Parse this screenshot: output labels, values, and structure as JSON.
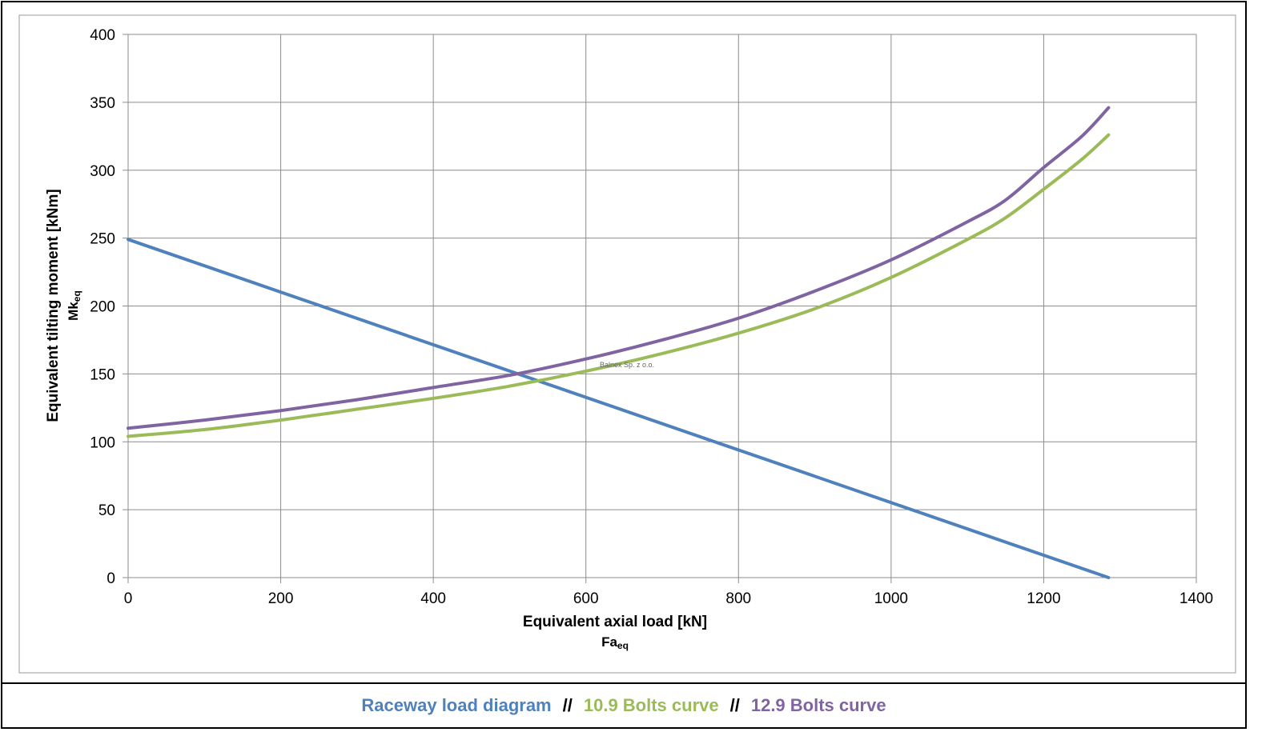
{
  "chart_data": {
    "type": "line",
    "title": "",
    "xlabel": "Equivalent axial load [kN]",
    "xlabel_symbol": "Fa",
    "xlabel_subscript": "eq",
    "ylabel": "Equivalent tilting moment [kNm]",
    "ylabel_symbol": "Mk",
    "ylabel_subscript": "eq",
    "xlim": [
      0,
      1400
    ],
    "ylim": [
      0,
      400
    ],
    "x_ticks": [
      0,
      200,
      400,
      600,
      800,
      1000,
      1200,
      1400
    ],
    "y_ticks": [
      0,
      50,
      100,
      150,
      200,
      250,
      300,
      350,
      400
    ],
    "grid": true,
    "watermark": "Balnex Sp. z o.o.",
    "series": [
      {
        "name": "Raceway load diagram",
        "color": "#4f81bd",
        "x": [
          0,
          1285
        ],
        "y": [
          249,
          0
        ]
      },
      {
        "name": "10.9 Bolts curve",
        "color": "#9bbb59",
        "x": [
          0,
          100,
          200,
          300,
          400,
          500,
          600,
          700,
          800,
          900,
          1000,
          1100,
          1150,
          1200,
          1250,
          1285
        ],
        "y": [
          104,
          109,
          116,
          124,
          132,
          141,
          152,
          165,
          180,
          198,
          221,
          249,
          265,
          286,
          308,
          326
        ]
      },
      {
        "name": "12.9 Bolts curve",
        "color": "#8064a2",
        "x": [
          0,
          100,
          200,
          300,
          400,
          500,
          600,
          700,
          800,
          900,
          1000,
          1100,
          1150,
          1200,
          1250,
          1285
        ],
        "y": [
          110,
          116,
          123,
          131,
          140,
          149,
          161,
          175,
          191,
          211,
          234,
          262,
          278,
          302,
          325,
          346
        ]
      }
    ]
  },
  "legend": {
    "items": [
      "Raceway load diagram",
      "10.9 Bolts curve",
      "12.9 Bolts curve"
    ],
    "separator": "//"
  }
}
